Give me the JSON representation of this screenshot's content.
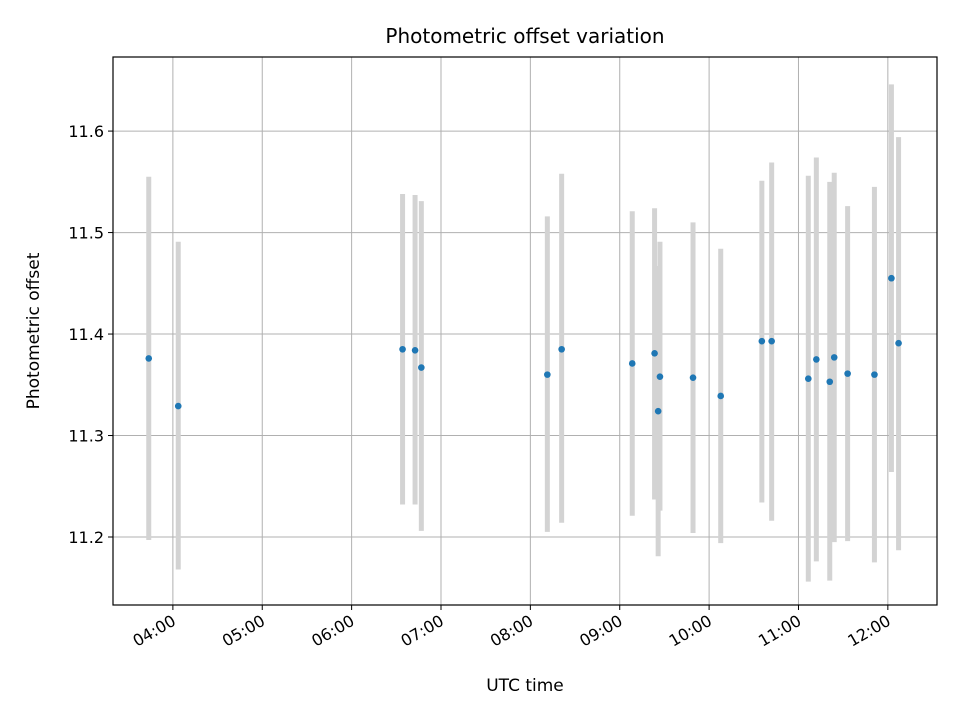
{
  "chart_data": {
    "type": "scatter",
    "title": "Photometric offset variation",
    "xlabel": "UTC time",
    "ylabel": "Photometric offset",
    "x_unit": "UTC hour",
    "xlim": [
      3.33,
      12.55
    ],
    "ylim": [
      11.133,
      11.673
    ],
    "x_ticks": [
      4,
      5,
      6,
      7,
      8,
      9,
      10,
      11,
      12
    ],
    "x_tick_labels": [
      "04:00",
      "05:00",
      "06:00",
      "07:00",
      "08:00",
      "09:00",
      "10:00",
      "11:00",
      "12:00"
    ],
    "y_ticks": [
      11.2,
      11.3,
      11.4,
      11.5,
      11.6
    ],
    "y_tick_labels": [
      "11.2",
      "11.3",
      "11.4",
      "11.5",
      "11.6"
    ],
    "grid": true,
    "marker_color": "#1f77b4",
    "errorbar_color": "#d3d3d3",
    "points": [
      {
        "x": 3.73,
        "y": 11.376,
        "ylow": 11.197,
        "yhigh": 11.555
      },
      {
        "x": 4.06,
        "y": 11.329,
        "ylow": 11.168,
        "yhigh": 11.491
      },
      {
        "x": 6.57,
        "y": 11.385,
        "ylow": 11.232,
        "yhigh": 11.538
      },
      {
        "x": 6.71,
        "y": 11.384,
        "ylow": 11.232,
        "yhigh": 11.537
      },
      {
        "x": 6.78,
        "y": 11.367,
        "ylow": 11.206,
        "yhigh": 11.531
      },
      {
        "x": 8.19,
        "y": 11.36,
        "ylow": 11.205,
        "yhigh": 11.516
      },
      {
        "x": 8.35,
        "y": 11.385,
        "ylow": 11.214,
        "yhigh": 11.558
      },
      {
        "x": 9.14,
        "y": 11.371,
        "ylow": 11.221,
        "yhigh": 11.521
      },
      {
        "x": 9.39,
        "y": 11.381,
        "ylow": 11.237,
        "yhigh": 11.524
      },
      {
        "x": 9.43,
        "y": 11.324,
        "ylow": 11.181,
        "yhigh": 11.467
      },
      {
        "x": 9.45,
        "y": 11.358,
        "ylow": 11.226,
        "yhigh": 11.491
      },
      {
        "x": 9.82,
        "y": 11.357,
        "ylow": 11.204,
        "yhigh": 11.51
      },
      {
        "x": 10.13,
        "y": 11.339,
        "ylow": 11.194,
        "yhigh": 11.484
      },
      {
        "x": 10.59,
        "y": 11.393,
        "ylow": 11.234,
        "yhigh": 11.551
      },
      {
        "x": 10.7,
        "y": 11.393,
        "ylow": 11.216,
        "yhigh": 11.569
      },
      {
        "x": 11.11,
        "y": 11.356,
        "ylow": 11.156,
        "yhigh": 11.556
      },
      {
        "x": 11.2,
        "y": 11.375,
        "ylow": 11.176,
        "yhigh": 11.574
      },
      {
        "x": 11.35,
        "y": 11.353,
        "ylow": 11.157,
        "yhigh": 11.55
      },
      {
        "x": 11.4,
        "y": 11.377,
        "ylow": 11.195,
        "yhigh": 11.559
      },
      {
        "x": 11.55,
        "y": 11.361,
        "ylow": 11.196,
        "yhigh": 11.526
      },
      {
        "x": 11.85,
        "y": 11.36,
        "ylow": 11.175,
        "yhigh": 11.545
      },
      {
        "x": 12.04,
        "y": 11.455,
        "ylow": 11.264,
        "yhigh": 11.646
      },
      {
        "x": 12.12,
        "y": 11.391,
        "ylow": 11.187,
        "yhigh": 11.594
      }
    ]
  }
}
